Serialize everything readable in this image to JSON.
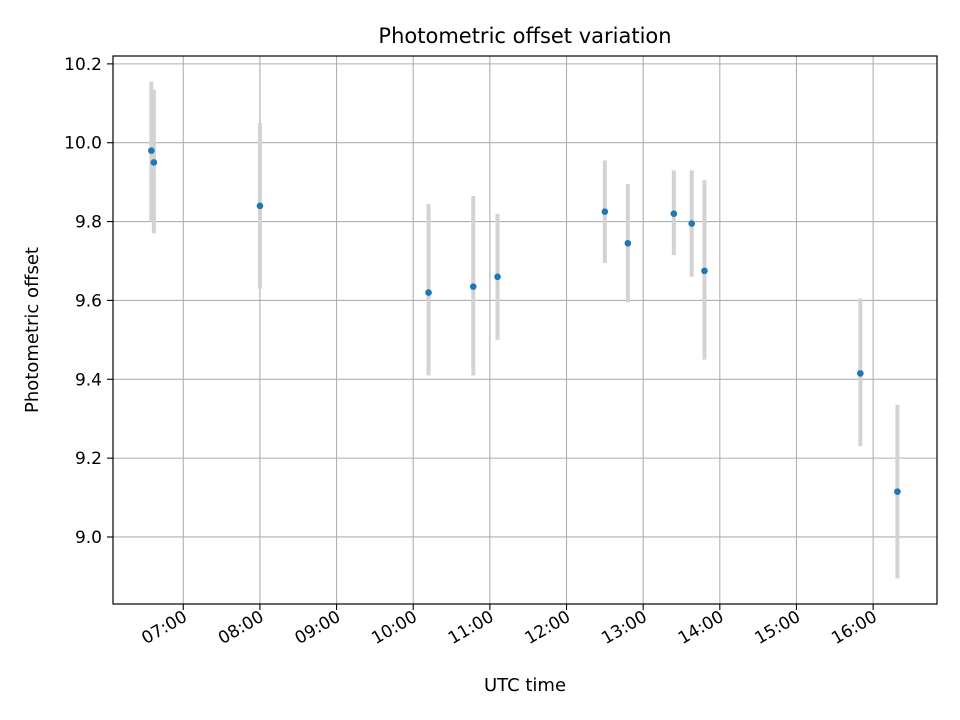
{
  "chart_data": {
    "type": "scatter",
    "title": "Photometric offset variation",
    "xlabel": "UTC time",
    "ylabel": "Photometric offset",
    "x_axis_type": "time",
    "xlim": [
      "06:05",
      "16:50"
    ],
    "ylim": [
      8.83,
      10.22
    ],
    "x_ticks": [
      "07:00",
      "08:00",
      "09:00",
      "10:00",
      "11:00",
      "12:00",
      "13:00",
      "14:00",
      "15:00",
      "16:00"
    ],
    "y_ticks": [
      9.0,
      9.2,
      9.4,
      9.6,
      9.8,
      10.0,
      10.2
    ],
    "grid": true,
    "legend": "none",
    "colors": {
      "marker": "#1f77b4",
      "errorbar": "#d3d3d3",
      "grid": "#b0b0b0"
    },
    "points": [
      {
        "t": "06:35",
        "y": 9.98,
        "lo": 9.8,
        "hi": 10.155
      },
      {
        "t": "06:37",
        "y": 9.95,
        "lo": 9.77,
        "hi": 10.135
      },
      {
        "t": "08:00",
        "y": 9.84,
        "lo": 9.63,
        "hi": 10.05
      },
      {
        "t": "10:12",
        "y": 9.62,
        "lo": 9.41,
        "hi": 9.845
      },
      {
        "t": "10:47",
        "y": 9.635,
        "lo": 9.41,
        "hi": 9.865
      },
      {
        "t": "11:06",
        "y": 9.66,
        "lo": 9.5,
        "hi": 9.82
      },
      {
        "t": "12:30",
        "y": 9.825,
        "lo": 9.695,
        "hi": 9.955
      },
      {
        "t": "12:48",
        "y": 9.745,
        "lo": 9.595,
        "hi": 9.895
      },
      {
        "t": "13:24",
        "y": 9.82,
        "lo": 9.715,
        "hi": 9.93
      },
      {
        "t": "13:38",
        "y": 9.795,
        "lo": 9.66,
        "hi": 9.93
      },
      {
        "t": "13:48",
        "y": 9.675,
        "lo": 9.45,
        "hi": 9.905
      },
      {
        "t": "15:50",
        "y": 9.415,
        "lo": 9.23,
        "hi": 9.605
      },
      {
        "t": "16:19",
        "y": 9.115,
        "lo": 8.895,
        "hi": 9.335
      }
    ]
  }
}
